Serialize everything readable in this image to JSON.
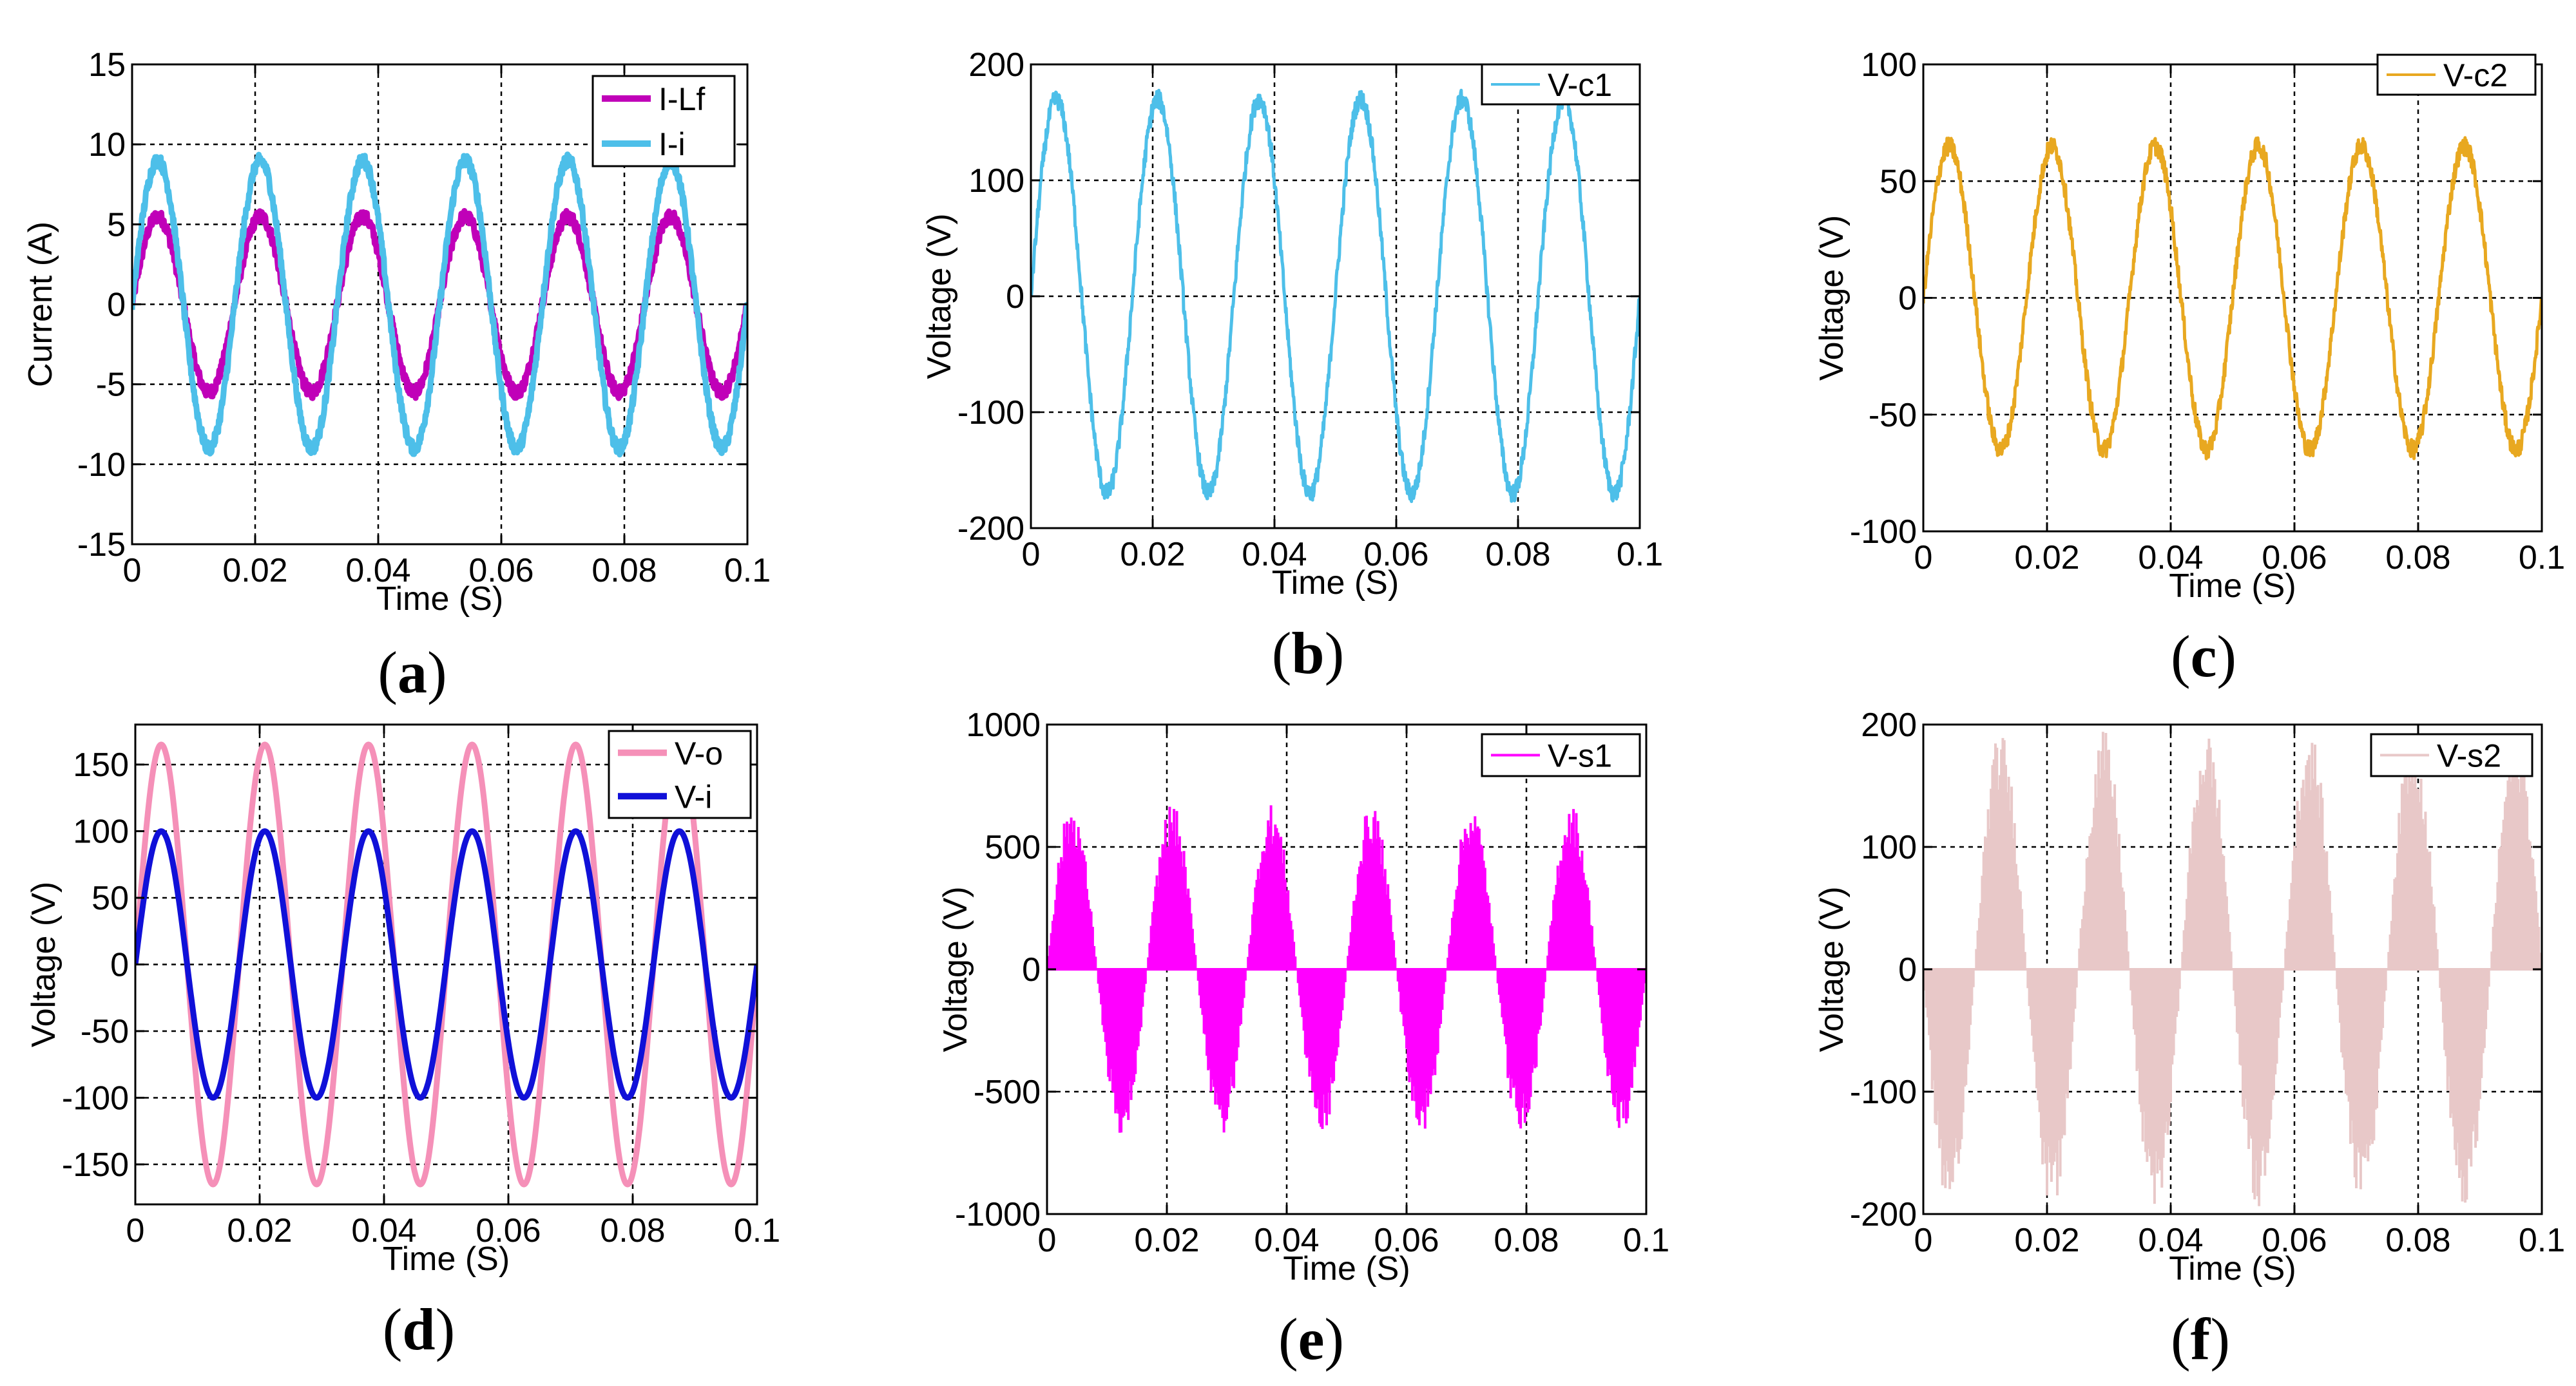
{
  "chart_data": [
    {
      "id": "a",
      "type": "line",
      "caption": "a",
      "xlabel": "Time (S)",
      "ylabel": "Current (A)",
      "xlim": [
        0,
        0.1
      ],
      "ylim": [
        -15,
        15
      ],
      "xticks": [
        0,
        0.02,
        0.04,
        0.06,
        0.08,
        0.1
      ],
      "xtick_labels": [
        "0",
        "0.02",
        "0.04",
        "0.06",
        "0.08",
        "0.1"
      ],
      "yticks": [
        -15,
        -10,
        -5,
        0,
        5,
        10,
        15
      ],
      "ytick_labels": [
        "-15",
        "-10",
        "-5",
        "0",
        "5",
        "10",
        "15"
      ],
      "grid": true,
      "legend": "top-right",
      "series": [
        {
          "name": "I-Lf",
          "color": "#c000b8",
          "amplitude": 5.5,
          "frequency_hz": 60,
          "phase_deg": 0,
          "ripple": 0.4,
          "chopped": true
        },
        {
          "name": "I-i",
          "color": "#4dbfe9",
          "amplitude": 9,
          "frequency_hz": 60,
          "phase_deg": 0,
          "ripple": 0.4
        }
      ]
    },
    {
      "id": "b",
      "type": "line",
      "caption": "b",
      "xlabel": "Time (S)",
      "ylabel": "Voltage (V)",
      "xlim": [
        0,
        0.1
      ],
      "ylim": [
        -200,
        200
      ],
      "xticks": [
        0,
        0.02,
        0.04,
        0.06,
        0.08,
        0.1
      ],
      "xtick_labels": [
        "0",
        "0.02",
        "0.04",
        "0.06",
        "0.08",
        "0.1"
      ],
      "yticks": [
        -200,
        -100,
        0,
        100,
        200
      ],
      "ytick_labels": [
        "-200",
        "-100",
        "0",
        "100",
        "200"
      ],
      "grid": true,
      "legend": "top-right",
      "series": [
        {
          "name": "V-c1",
          "color": "#4dbfe9",
          "amplitude": 170,
          "frequency_hz": 60,
          "phase_deg": 0,
          "ripple": 8
        }
      ]
    },
    {
      "id": "c",
      "type": "line",
      "caption": "c",
      "xlabel": "Time (S)",
      "ylabel": "Voltage (V)",
      "xlim": [
        0,
        0.1
      ],
      "ylim": [
        -100,
        100
      ],
      "xticks": [
        0,
        0.02,
        0.04,
        0.06,
        0.08,
        0.1
      ],
      "xtick_labels": [
        "0",
        "0.02",
        "0.04",
        "0.06",
        "0.08",
        "0.1"
      ],
      "yticks": [
        -100,
        -50,
        0,
        50,
        100
      ],
      "ytick_labels": [
        "-100",
        "-50",
        "0",
        "50",
        "100"
      ],
      "grid": true,
      "legend": "top-right",
      "series": [
        {
          "name": "V-c2",
          "color": "#e8a820",
          "amplitude": 65,
          "frequency_hz": 60,
          "phase_deg": 0,
          "ripple": 4
        }
      ]
    },
    {
      "id": "d",
      "type": "line",
      "caption": "d",
      "xlabel": "Time (S)",
      "ylabel": "Voltage (V)",
      "xlim": [
        0,
        0.1
      ],
      "ylim": [
        -180,
        180
      ],
      "xticks": [
        0,
        0.02,
        0.04,
        0.06,
        0.08,
        0.1
      ],
      "xtick_labels": [
        "0",
        "0.02",
        "0.04",
        "0.06",
        "0.08",
        "0.1"
      ],
      "yticks": [
        -150,
        -100,
        -50,
        0,
        50,
        100,
        150
      ],
      "ytick_labels": [
        "-150",
        "-100",
        "-50",
        "0",
        "50",
        "100",
        "150"
      ],
      "grid": true,
      "legend": "top-right",
      "series": [
        {
          "name": "V-o",
          "color": "#f590b8",
          "amplitude": 165,
          "frequency_hz": 60,
          "phase_deg": 0,
          "ripple": 0
        },
        {
          "name": "V-i",
          "color": "#1010d8",
          "amplitude": 100,
          "frequency_hz": 60,
          "phase_deg": 0,
          "ripple": 0
        }
      ]
    },
    {
      "id": "e",
      "type": "line",
      "caption": "e",
      "xlabel": "Time (S)",
      "ylabel": "Voltage (V)",
      "xlim": [
        0,
        0.1
      ],
      "ylim": [
        -1000,
        1000
      ],
      "xticks": [
        0,
        0.02,
        0.04,
        0.06,
        0.08,
        0.1
      ],
      "xtick_labels": [
        "0",
        "0.02",
        "0.04",
        "0.06",
        "0.08",
        "0.1"
      ],
      "yticks": [
        -1000,
        -500,
        0,
        500,
        1000
      ],
      "ytick_labels": [
        "-1000",
        "-500",
        "0",
        "500",
        "1000"
      ],
      "grid": true,
      "legend": "top-right",
      "series": [
        {
          "name": "V-s1",
          "color": "#ff00ff",
          "amplitude": 680,
          "frequency_hz": 60,
          "phase_deg": 0,
          "switching": true
        }
      ]
    },
    {
      "id": "f",
      "type": "line",
      "caption": "f",
      "xlabel": "Time (S)",
      "ylabel": "Voltage (V)",
      "xlim": [
        0,
        0.1
      ],
      "ylim": [
        -200,
        200
      ],
      "xticks": [
        0,
        0.02,
        0.04,
        0.06,
        0.08,
        0.1
      ],
      "xtick_labels": [
        "0",
        "0.02",
        "0.04",
        "0.06",
        "0.08",
        "0.1"
      ],
      "yticks": [
        -200,
        -100,
        0,
        100,
        200
      ],
      "ytick_labels": [
        "-200",
        "-100",
        "0",
        "100",
        "200"
      ],
      "grid": true,
      "legend": "top-right",
      "series": [
        {
          "name": "V-s2",
          "color": "#e8c8c8",
          "amplitude": 195,
          "frequency_hz": 60,
          "phase_deg": 180,
          "switching": true
        }
      ]
    }
  ]
}
